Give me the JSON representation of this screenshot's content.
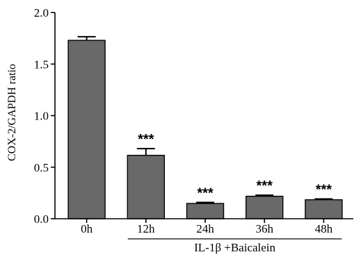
{
  "chart_data": {
    "type": "bar",
    "categories": [
      "0h",
      "12h",
      "24h",
      "36h",
      "48h"
    ],
    "values": [
      1.73,
      0.615,
      0.148,
      0.218,
      0.184
    ],
    "errors": [
      0.035,
      0.065,
      0.01,
      0.01,
      0.008
    ],
    "significance": [
      "",
      "***",
      "***",
      "***",
      "***"
    ],
    "ylabel": "COX-2/GAPDH ratio",
    "group_label": "IL-1β +Baicalein",
    "ylim": [
      0,
      2.0
    ],
    "yticks": [
      0.0,
      0.5,
      1.0,
      1.5,
      2.0
    ],
    "ytick_labels": [
      "0.0",
      "0.5",
      "1.0",
      "1.5",
      "2.0"
    ],
    "bar_color": "#696969",
    "grid": false
  }
}
